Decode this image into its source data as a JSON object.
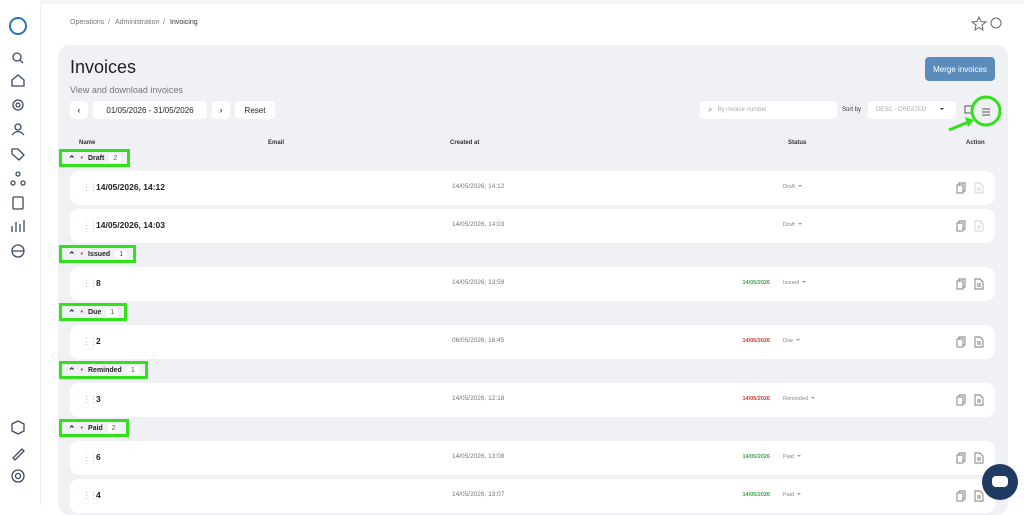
{
  "breadcrumb": [
    "Operations",
    "Administration",
    "Invoicing"
  ],
  "header": {
    "title": "Invoices",
    "subtitle": "View and download invoices",
    "merge_button": "Merge invoices"
  },
  "toolbar": {
    "date_range": "01/05/2026 - 31/05/2026",
    "reset": "Reset",
    "search_placeholder": "By invoice number",
    "sort_label": "Sort by",
    "sort_value": "DESC - CREATED"
  },
  "columns": [
    "Name",
    "Email",
    "Created at",
    "Status",
    "Action"
  ],
  "groups": [
    {
      "name": "Draft",
      "count": 2,
      "rows": [
        {
          "name": "14/05/2026, 14:12",
          "created": "14/05/2026, 14:12",
          "status": "Draft"
        },
        {
          "name": "14/05/2026, 14:03",
          "created": "14/05/2026, 14:03",
          "status": "Draft"
        }
      ]
    },
    {
      "name": "Issued",
      "count": 1,
      "rows": [
        {
          "name": "8",
          "created": "14/05/2026, 13:59",
          "date": "14/05/2026",
          "date_color": "#3aa64a",
          "status": "Issued"
        }
      ]
    },
    {
      "name": "Due",
      "count": 1,
      "rows": [
        {
          "name": "2",
          "created": "06/05/2026, 16:45",
          "date": "14/05/2026",
          "date_color": "#d9362b",
          "status": "Due"
        }
      ]
    },
    {
      "name": "Reminded",
      "count": 1,
      "rows": [
        {
          "name": "3",
          "created": "14/05/2026, 12:18",
          "date": "14/05/2026",
          "date_color": "#d9362b",
          "status": "Reminded"
        }
      ]
    },
    {
      "name": "Paid",
      "count": 2,
      "rows": [
        {
          "name": "6",
          "created": "14/05/2026, 13:08",
          "date": "14/05/2026",
          "date_color": "#3aa64a",
          "status": "Paid"
        },
        {
          "name": "4",
          "created": "14/05/2026, 13:07",
          "date": "14/05/2026",
          "date_color": "#3aa64a",
          "status": "Paid"
        }
      ]
    }
  ]
}
